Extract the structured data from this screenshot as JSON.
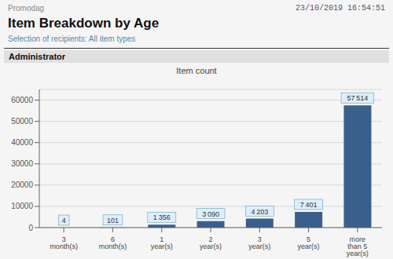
{
  "chart_data": {
    "type": "bar",
    "title": "Item Breakdown by Age",
    "subtitle": "Selection of recipients: All item types",
    "annotations": [
      "23/10/2019 16:54:51",
      "Promodag",
      "Administrator",
      "Item count"
    ],
    "categories": [
      "3 month(s)",
      "6 month(s)",
      "1 year(s)",
      "2 year(s)",
      "3 year(s)",
      "5 year(s)",
      "more than 5 year(s)"
    ],
    "values": [
      4,
      101,
      1356,
      3090,
      4203,
      7401,
      57514
    ],
    "value_labels": [
      "4",
      "101",
      "1 356",
      "3 090",
      "4 203",
      "7 401",
      "57 514"
    ],
    "data_labels": true,
    "color": "#3A5F8A",
    "ylim": [
      0,
      65000
    ],
    "yticks": [
      0,
      10000,
      20000,
      30000,
      40000,
      50000,
      60000
    ],
    "grid": true
  }
}
